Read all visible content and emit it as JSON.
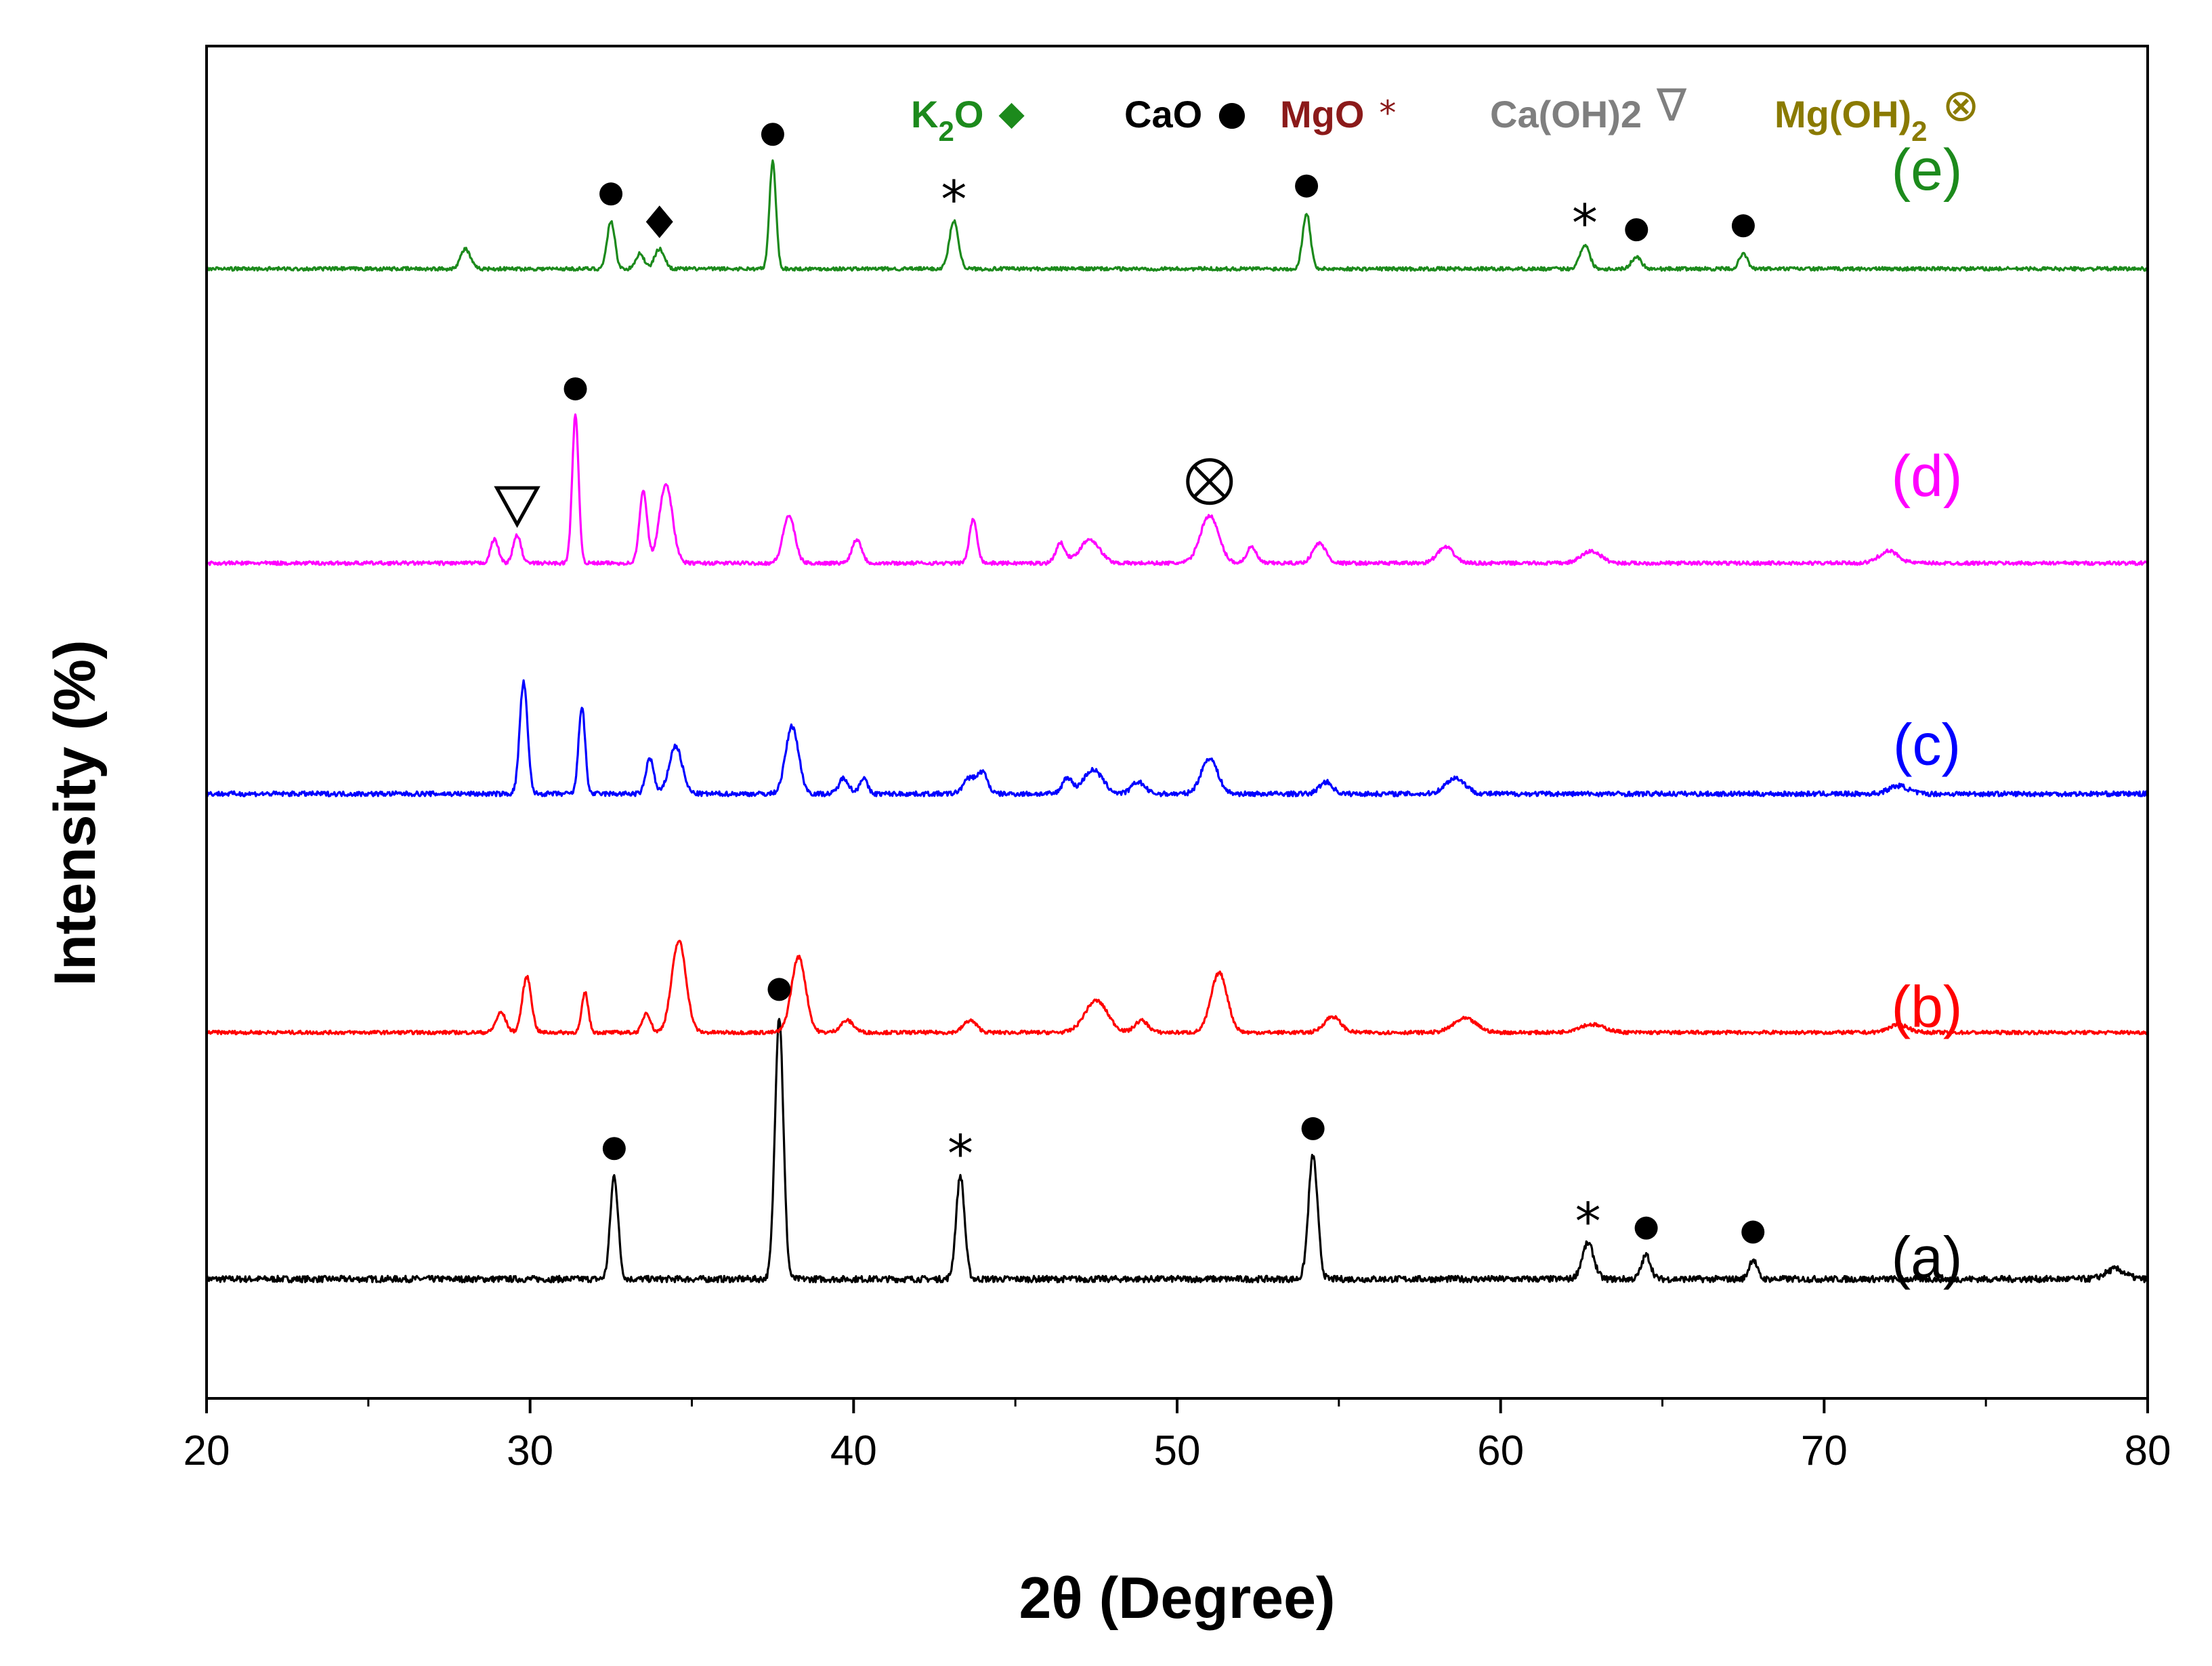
{
  "chart_data": {
    "type": "line",
    "title": "",
    "xlabel": "2θ (Degree)",
    "ylabel": "Intensity (%)",
    "xlim": [
      20,
      80
    ],
    "x_ticks": [
      "20",
      "30",
      "40",
      "50",
      "60",
      "70",
      "80"
    ],
    "y_ticks": [],
    "grid": false,
    "legend_position": "top-right",
    "legend": [
      {
        "label_main": "K",
        "label_sub": "2",
        "label_end": "O",
        "symbol": "diamond",
        "glyph": "◆",
        "color": "#1c8a1c"
      },
      {
        "label_main": "CaO",
        "label_sub": "",
        "label_end": "",
        "symbol": "circle",
        "glyph": "●",
        "color": "#000000"
      },
      {
        "label_main": "MgO",
        "label_sub": "",
        "label_end": "",
        "symbol": "asterisk",
        "glyph": "*",
        "color": "#8b1a1a"
      },
      {
        "label_main": "Ca(OH)2",
        "label_sub": "",
        "label_end": "",
        "symbol": "triangle-down",
        "glyph": "∇",
        "color": "#7f7f7f"
      },
      {
        "label_main": "Mg(OH)",
        "label_sub": "2",
        "label_end": "",
        "symbol": "circled-times",
        "glyph": "⊗",
        "color": "#8a7a00"
      }
    ],
    "series": [
      {
        "name": "(a)",
        "color": "#000000",
        "baseline": 1.0,
        "noise": 0.16,
        "peaks": [
          [
            32.6,
            2.6,
            0.12
          ],
          [
            37.7,
            6.6,
            0.13
          ],
          [
            43.3,
            2.6,
            0.13
          ],
          [
            54.2,
            3.1,
            0.14
          ],
          [
            62.7,
            0.9,
            0.18
          ],
          [
            64.5,
            0.6,
            0.14
          ],
          [
            67.8,
            0.5,
            0.12
          ],
          [
            79.0,
            0.25,
            0.3
          ]
        ],
        "markers": [
          {
            "x": 32.6,
            "symbol": "circle"
          },
          {
            "x": 37.7,
            "symbol": "circle"
          },
          {
            "x": 43.3,
            "symbol": "asterisk"
          },
          {
            "x": 54.2,
            "symbol": "circle"
          },
          {
            "x": 62.7,
            "symbol": "asterisk"
          },
          {
            "x": 64.5,
            "symbol": "circle"
          },
          {
            "x": 67.8,
            "symbol": "circle"
          }
        ]
      },
      {
        "name": "(b)",
        "color": "#ff0000",
        "baseline": 7.2,
        "noise": 0.09,
        "peaks": [
          [
            29.1,
            0.5,
            0.15
          ],
          [
            29.9,
            1.4,
            0.14
          ],
          [
            31.7,
            1.0,
            0.1
          ],
          [
            33.6,
            0.5,
            0.12
          ],
          [
            34.6,
            2.3,
            0.22
          ],
          [
            38.3,
            1.9,
            0.22
          ],
          [
            39.8,
            0.3,
            0.2
          ],
          [
            43.6,
            0.3,
            0.2
          ],
          [
            47.5,
            0.8,
            0.35
          ],
          [
            48.9,
            0.3,
            0.2
          ],
          [
            51.3,
            1.5,
            0.25
          ],
          [
            54.8,
            0.4,
            0.25
          ],
          [
            58.9,
            0.35,
            0.35
          ],
          [
            62.8,
            0.2,
            0.4
          ],
          [
            72.3,
            0.2,
            0.3
          ]
        ],
        "markers": []
      },
      {
        "name": "(c)",
        "color": "#0000ff",
        "baseline": 13.2,
        "noise": 0.12,
        "peaks": [
          [
            29.8,
            2.8,
            0.12
          ],
          [
            31.6,
            2.2,
            0.1
          ],
          [
            33.7,
            0.9,
            0.12
          ],
          [
            34.5,
            1.2,
            0.2
          ],
          [
            38.1,
            1.7,
            0.2
          ],
          [
            39.7,
            0.4,
            0.15
          ],
          [
            40.3,
            0.4,
            0.12
          ],
          [
            43.6,
            0.4,
            0.2
          ],
          [
            44.0,
            0.5,
            0.15
          ],
          [
            46.6,
            0.4,
            0.15
          ],
          [
            47.4,
            0.6,
            0.3
          ],
          [
            48.8,
            0.3,
            0.2
          ],
          [
            51.0,
            0.9,
            0.25
          ],
          [
            54.6,
            0.3,
            0.2
          ],
          [
            58.6,
            0.4,
            0.3
          ],
          [
            72.3,
            0.2,
            0.3
          ]
        ],
        "markers": []
      },
      {
        "name": "(d)",
        "color": "#ff00ff",
        "baseline": 19.0,
        "noise": 0.09,
        "peaks": [
          [
            28.9,
            0.6,
            0.12
          ],
          [
            29.6,
            0.7,
            0.12
          ],
          [
            31.4,
            3.7,
            0.1
          ],
          [
            33.5,
            1.8,
            0.12
          ],
          [
            34.2,
            2.0,
            0.2
          ],
          [
            38.0,
            1.2,
            0.18
          ],
          [
            40.1,
            0.6,
            0.15
          ],
          [
            43.7,
            1.1,
            0.12
          ],
          [
            46.4,
            0.5,
            0.15
          ],
          [
            47.3,
            0.6,
            0.3
          ],
          [
            51.0,
            1.2,
            0.28
          ],
          [
            52.3,
            0.4,
            0.15
          ],
          [
            54.4,
            0.5,
            0.2
          ],
          [
            58.3,
            0.4,
            0.25
          ],
          [
            62.8,
            0.3,
            0.3
          ],
          [
            72.0,
            0.3,
            0.3
          ]
        ],
        "markers": [
          {
            "x": 29.6,
            "symbol": "triangle-down"
          },
          {
            "x": 31.4,
            "symbol": "circle"
          },
          {
            "x": 51.0,
            "symbol": "circled-times"
          }
        ]
      },
      {
        "name": "(e)",
        "color": "#1c8a1c",
        "baseline": 26.4,
        "noise": 0.09,
        "peaks": [
          [
            28.0,
            0.5,
            0.15
          ],
          [
            32.5,
            1.2,
            0.12
          ],
          [
            33.4,
            0.4,
            0.12
          ],
          [
            34.0,
            0.5,
            0.15
          ],
          [
            37.5,
            2.7,
            0.1
          ],
          [
            43.1,
            1.2,
            0.14
          ],
          [
            54.0,
            1.4,
            0.12
          ],
          [
            62.6,
            0.6,
            0.15
          ],
          [
            64.2,
            0.3,
            0.15
          ],
          [
            67.5,
            0.4,
            0.12
          ]
        ],
        "markers": [
          {
            "x": 32.5,
            "symbol": "circle"
          },
          {
            "x": 34.0,
            "symbol": "diamond"
          },
          {
            "x": 37.5,
            "symbol": "circle"
          },
          {
            "x": 43.1,
            "symbol": "asterisk"
          },
          {
            "x": 54.0,
            "symbol": "circle"
          },
          {
            "x": 62.6,
            "symbol": "asterisk"
          },
          {
            "x": 64.2,
            "symbol": "circle"
          },
          {
            "x": 67.5,
            "symbol": "circle"
          }
        ]
      }
    ]
  }
}
